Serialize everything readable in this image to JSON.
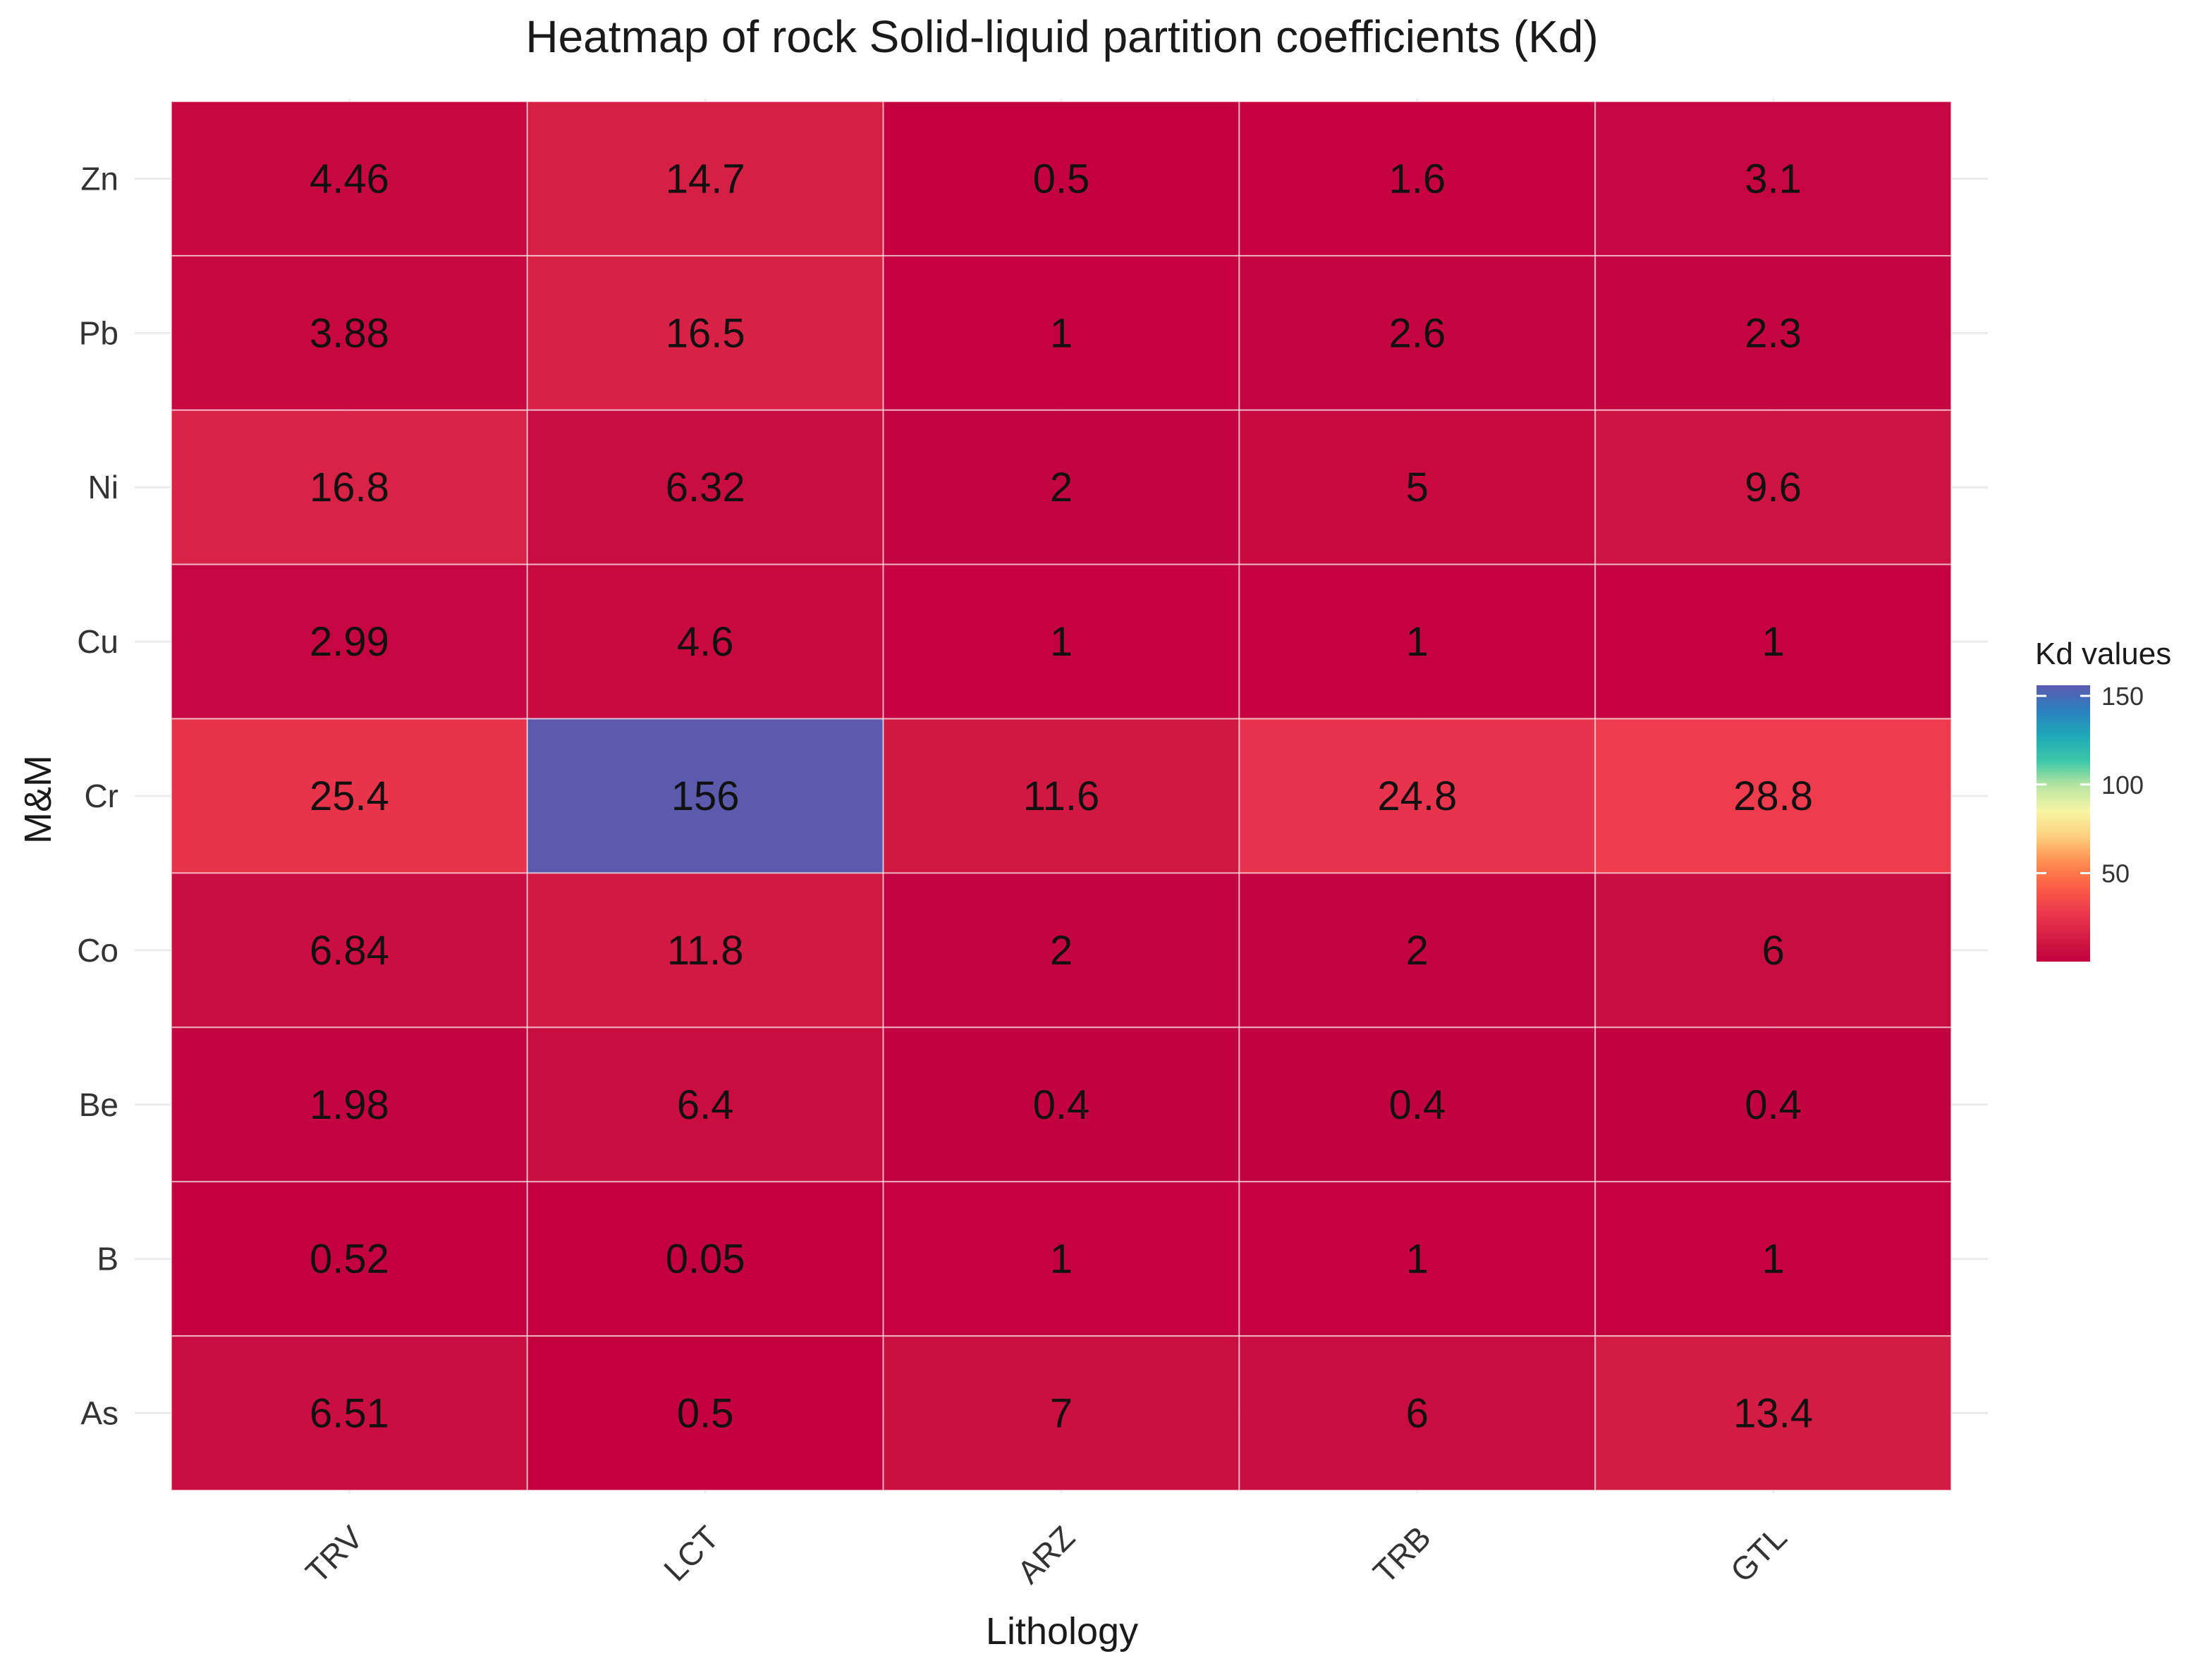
{
  "chart_data": {
    "type": "heatmap",
    "title": "Heatmap of rock Solid-liquid partition coefficients (Kd)",
    "xlabel": "Lithology",
    "ylabel": "M&M",
    "x_categories": [
      "TRV",
      "LCT",
      "ARZ",
      "TRB",
      "GTL"
    ],
    "y_categories": [
      "Zn",
      "Pb",
      "Ni",
      "Cu",
      "Cr",
      "Co",
      "Be",
      "B",
      "As"
    ],
    "cells": [
      {
        "row": "Zn",
        "values": [
          4.46,
          14.7,
          0.5,
          1.6,
          3.1
        ],
        "labels": [
          "4.46",
          "14.7",
          "0.5",
          "1.6",
          "3.1"
        ]
      },
      {
        "row": "Pb",
        "values": [
          3.88,
          16.5,
          1,
          2.6,
          2.3
        ],
        "labels": [
          "3.88",
          "16.5",
          "1",
          "2.6",
          "2.3"
        ]
      },
      {
        "row": "Ni",
        "values": [
          16.8,
          6.32,
          2,
          5,
          9.6
        ],
        "labels": [
          "16.8",
          "6.32",
          "2",
          "5",
          "9.6"
        ]
      },
      {
        "row": "Cu",
        "values": [
          2.99,
          4.6,
          1,
          1,
          1
        ],
        "labels": [
          "2.99",
          "4.6",
          "1",
          "1",
          "1"
        ]
      },
      {
        "row": "Cr",
        "values": [
          25.4,
          156,
          11.6,
          24.8,
          28.8
        ],
        "labels": [
          "25.4",
          "156",
          "11.6",
          "24.8",
          "28.8"
        ]
      },
      {
        "row": "Co",
        "values": [
          6.84,
          11.8,
          2,
          2,
          6
        ],
        "labels": [
          "6.84",
          "11.8",
          "2",
          "2",
          "6"
        ]
      },
      {
        "row": "Be",
        "values": [
          1.98,
          6.4,
          0.4,
          0.4,
          0.4
        ],
        "labels": [
          "1.98",
          "6.4",
          "0.4",
          "0.4",
          "0.4"
        ]
      },
      {
        "row": "B",
        "values": [
          0.52,
          0.05,
          1,
          1,
          1
        ],
        "labels": [
          "0.52",
          "0.05",
          "1",
          "1",
          "1"
        ]
      },
      {
        "row": "As",
        "values": [
          6.51,
          0.5,
          7,
          6,
          13.4
        ],
        "labels": [
          "6.51",
          "0.5",
          "7",
          "6",
          "13.4"
        ]
      }
    ],
    "legend": {
      "title": "Kd values",
      "placement": "right",
      "range": [
        0.05,
        156
      ],
      "ticks": [
        50,
        100,
        150
      ],
      "tick_labels": [
        "50",
        "100",
        "150"
      ],
      "palette": "Spectral",
      "colors": [
        "#c2003f",
        "#d41e44",
        "#ee3a4d",
        "#fb5f46",
        "#ff8f52",
        "#fdd07f",
        "#f6f6a4",
        "#b8e4a2",
        "#3cc7a8",
        "#1ea8b8",
        "#2d7fc0",
        "#5c5aad"
      ]
    },
    "grid": true
  }
}
